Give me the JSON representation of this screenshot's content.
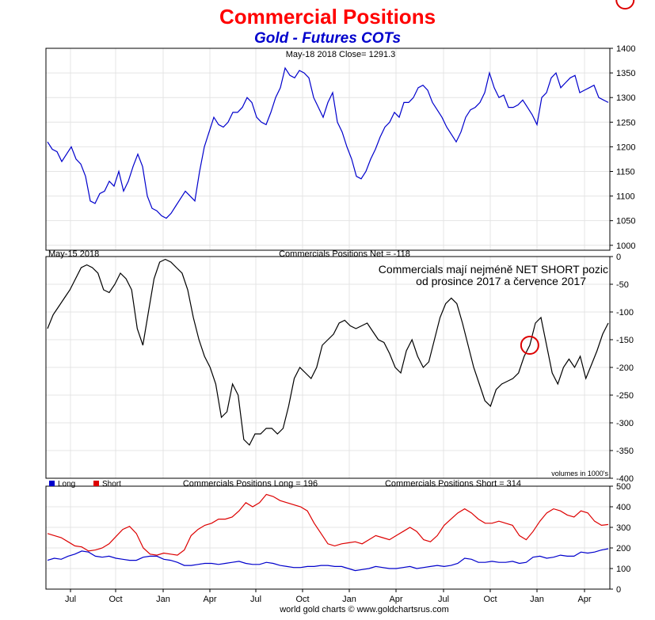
{
  "header": {
    "title": "Commercial Positions",
    "subtitle": "Gold - Futures COTs"
  },
  "footer": {
    "credit": "world gold charts © www.goldchartsrus.com"
  },
  "colors": {
    "title": "#ff0000",
    "subtitle": "#0000cc",
    "price": "#0000cc",
    "net": "#000000",
    "long": "#0000cc",
    "short": "#dd0000",
    "annotation_circle": "#dd0000"
  },
  "chart_data": [
    {
      "type": "line",
      "panel": "price",
      "info_label": "May-18  2018   Close= 1291.3",
      "ylim": [
        990,
        1400
      ],
      "yticks": [
        1000,
        1050,
        1100,
        1150,
        1200,
        1250,
        1300,
        1350,
        1400
      ],
      "grid": true,
      "series": [
        {
          "values": [
            1210,
            1195,
            1190,
            1170,
            1185,
            1200,
            1175,
            1165,
            1140,
            1090,
            1085,
            1105,
            1110,
            1130,
            1120,
            1150,
            1110,
            1130,
            1160,
            1185,
            1160,
            1100,
            1075,
            1070,
            1060,
            1055,
            1065,
            1080,
            1095,
            1110,
            1100,
            1090,
            1150,
            1200,
            1230,
            1260,
            1245,
            1240,
            1250,
            1270,
            1270,
            1280,
            1300,
            1290,
            1260,
            1250,
            1245,
            1270,
            1300,
            1320,
            1360,
            1345,
            1340,
            1355,
            1350,
            1340,
            1300,
            1280,
            1260,
            1290,
            1310,
            1250,
            1230,
            1200,
            1175,
            1140,
            1135,
            1150,
            1175,
            1195,
            1220,
            1240,
            1250,
            1270,
            1260,
            1290,
            1290,
            1300,
            1320,
            1325,
            1315,
            1290,
            1275,
            1260,
            1240,
            1225,
            1210,
            1230,
            1260,
            1275,
            1280,
            1290,
            1310,
            1350,
            1320,
            1300,
            1305,
            1280,
            1280,
            1285,
            1295,
            1280,
            1265,
            1245,
            1300,
            1310,
            1340,
            1350,
            1320,
            1330,
            1340,
            1345,
            1310,
            1315,
            1320,
            1325,
            1300,
            1295,
            1290
          ]
        }
      ]
    },
    {
      "type": "line",
      "panel": "net",
      "info_label": "May-15  2018",
      "series_label": "Commercials Positions Net = -118",
      "annotation": [
        "Commercials mají nejméně NET SHORT pozic",
        "od prosince 2017 a července 2017"
      ],
      "ylim": [
        -400,
        0
      ],
      "yticks": [
        0,
        -50,
        -100,
        -150,
        -200,
        -250,
        -300,
        -350,
        -400
      ],
      "grid": true,
      "circle_markers_at": [
        86,
        103,
        118
      ],
      "series": [
        {
          "values": [
            -130,
            -105,
            -90,
            -75,
            -60,
            -40,
            -20,
            -15,
            -20,
            -30,
            -60,
            -65,
            -50,
            -30,
            -40,
            -60,
            -130,
            -160,
            -100,
            -40,
            -10,
            -5,
            -10,
            -20,
            -30,
            -60,
            -110,
            -150,
            -180,
            -200,
            -230,
            -290,
            -280,
            -230,
            -250,
            -330,
            -340,
            -320,
            -320,
            -310,
            -310,
            -320,
            -310,
            -270,
            -220,
            -200,
            -210,
            -220,
            -200,
            -160,
            -150,
            -140,
            -120,
            -115,
            -125,
            -130,
            -125,
            -120,
            -135,
            -150,
            -155,
            -175,
            -200,
            -210,
            -170,
            -150,
            -180,
            -200,
            -190,
            -150,
            -110,
            -85,
            -75,
            -85,
            -120,
            -160,
            -200,
            -230,
            -260,
            -270,
            -240,
            -230,
            -225,
            -220,
            -210,
            -180,
            -160,
            -120,
            -110,
            -160,
            -210,
            -230,
            -200,
            -185,
            -200,
            -180,
            -220,
            -195,
            -170,
            -140,
            -120
          ]
        }
      ]
    },
    {
      "type": "line",
      "panel": "long-short",
      "long_label": "Commercials Positions Long = 196",
      "short_label": "Commercials Positions Short = 314",
      "units_note": "volumes in 1000's",
      "ylim": [
        0,
        500
      ],
      "yticks": [
        0,
        100,
        200,
        300,
        400,
        500
      ],
      "grid": true,
      "x_tick_labels": [
        "Jul",
        "Oct",
        "Jan",
        "Apr",
        "Jul",
        "Oct",
        "Jan",
        "Apr",
        "Jul",
        "Oct",
        "Jan",
        "Apr"
      ],
      "series": [
        {
          "name": "Long",
          "values": [
            140,
            150,
            145,
            160,
            170,
            185,
            180,
            160,
            155,
            160,
            150,
            145,
            140,
            140,
            155,
            160,
            160,
            145,
            140,
            130,
            115,
            115,
            120,
            125,
            125,
            120,
            125,
            130,
            135,
            125,
            120,
            120,
            130,
            125,
            115,
            110,
            105,
            105,
            110,
            110,
            115,
            115,
            110,
            110,
            100,
            90,
            95,
            100,
            110,
            105,
            100,
            100,
            105,
            110,
            100,
            105,
            110,
            115,
            110,
            115,
            125,
            150,
            145,
            130,
            130,
            135,
            130,
            130,
            135,
            125,
            130,
            155,
            160,
            150,
            155,
            165,
            160,
            160,
            180,
            175,
            180,
            190,
            196
          ]
        },
        {
          "name": "Short",
          "values": [
            270,
            260,
            250,
            230,
            210,
            205,
            185,
            190,
            200,
            220,
            255,
            290,
            305,
            270,
            200,
            170,
            165,
            175,
            170,
            165,
            190,
            260,
            290,
            310,
            320,
            340,
            340,
            350,
            380,
            420,
            400,
            420,
            460,
            450,
            430,
            420,
            410,
            400,
            380,
            320,
            270,
            220,
            210,
            220,
            225,
            230,
            220,
            240,
            260,
            250,
            240,
            260,
            280,
            300,
            280,
            240,
            230,
            260,
            310,
            340,
            370,
            390,
            370,
            340,
            320,
            320,
            330,
            320,
            310,
            260,
            240,
            280,
            330,
            370,
            390,
            380,
            360,
            350,
            380,
            370,
            330,
            310,
            314
          ]
        }
      ]
    }
  ]
}
